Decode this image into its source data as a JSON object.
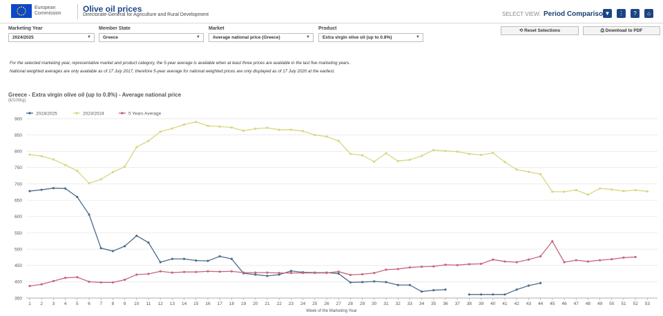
{
  "header": {
    "logo_line1": "European",
    "logo_line2": "Commission",
    "title": "Olive oil prices",
    "subtitle": "Directorate-General for Agriculture and Rural Development",
    "select_view_label": "SELECT VIEW:",
    "select_view_value": "Period Comparison",
    "icons": [
      "filter-icon",
      "more-vertical-icon",
      "help-icon",
      "home-icon"
    ]
  },
  "filters": [
    {
      "label": "Marketing Year",
      "value": "2024/2025"
    },
    {
      "label": "Member State",
      "value": "Greece"
    },
    {
      "label": "Market",
      "value": "Average national price (Greece)"
    },
    {
      "label": "Product",
      "value": "Extra virgin olive oil (up to 0.8%)"
    }
  ],
  "actions": {
    "reset": "Reset Selections",
    "download": "Download to PDF"
  },
  "notes": [
    "For the selected marketing year, representative market and product category, the 5-year average is available when at least three prices are available in the last five marketing years.",
    "National weighted averages are only available as of 17 July 2017, therefore 5-year average for national weighted prices are only displayed as of 17 July 2020 at the earliest."
  ],
  "chart_data": {
    "type": "line",
    "title": "Greece - Extra virgin olive oil (up to 0.8%) - Average national price",
    "unit": "(€/100kg)",
    "xlabel": "Week of the Marketing Year",
    "ylabel": "",
    "ylim": [
      350,
      900
    ],
    "yticks": [
      350,
      400,
      450,
      500,
      550,
      600,
      650,
      700,
      750,
      800,
      850,
      900
    ],
    "x": [
      1,
      2,
      3,
      4,
      5,
      6,
      7,
      8,
      9,
      10,
      11,
      12,
      13,
      14,
      15,
      16,
      17,
      18,
      19,
      20,
      21,
      22,
      23,
      24,
      25,
      26,
      27,
      28,
      29,
      30,
      31,
      32,
      33,
      34,
      35,
      36,
      37,
      38,
      39,
      40,
      41,
      42,
      43,
      44,
      45,
      46,
      47,
      48,
      49,
      50,
      51,
      52,
      53
    ],
    "legend_position": "top-left",
    "grid": true,
    "series": [
      {
        "name": "2024/2025",
        "color": "#4a6b8a",
        "values": [
          678,
          682,
          687,
          686,
          660,
          606,
          503,
          494,
          509,
          541,
          520,
          460,
          470,
          470,
          465,
          464,
          478,
          470,
          426,
          422,
          418,
          422,
          433,
          429,
          428,
          428,
          425,
          398,
          399,
          401,
          399,
          390,
          390,
          370,
          374,
          376,
          null,
          361,
          361,
          361,
          361,
          376,
          388,
          396,
          null,
          null,
          null,
          null,
          null,
          null,
          null,
          null,
          null
        ]
      },
      {
        "name": "2023/2024",
        "color": "#d8d680",
        "values": [
          790,
          785,
          775,
          758,
          740,
          702,
          714,
          736,
          753,
          813,
          832,
          860,
          870,
          882,
          890,
          878,
          876,
          873,
          863,
          869,
          872,
          866,
          866,
          862,
          850,
          845,
          832,
          792,
          788,
          768,
          794,
          770,
          774,
          786,
          804,
          801,
          799,
          792,
          789,
          795,
          767,
          744,
          737,
          730,
          676,
          676,
          681,
          667,
          686,
          683,
          678,
          681,
          677
        ]
      },
      {
        "name": "5 Years Average",
        "color": "#c8647a",
        "values": [
          387,
          392,
          402,
          412,
          414,
          400,
          398,
          398,
          406,
          422,
          424,
          432,
          428,
          430,
          430,
          432,
          431,
          432,
          428,
          428,
          428,
          427,
          427,
          427,
          427,
          427,
          431,
          421,
          423,
          427,
          437,
          439,
          444,
          446,
          447,
          452,
          451,
          454,
          455,
          468,
          462,
          460,
          468,
          478,
          524,
          460,
          466,
          462,
          466,
          469,
          474,
          476,
          null
        ]
      }
    ]
  }
}
